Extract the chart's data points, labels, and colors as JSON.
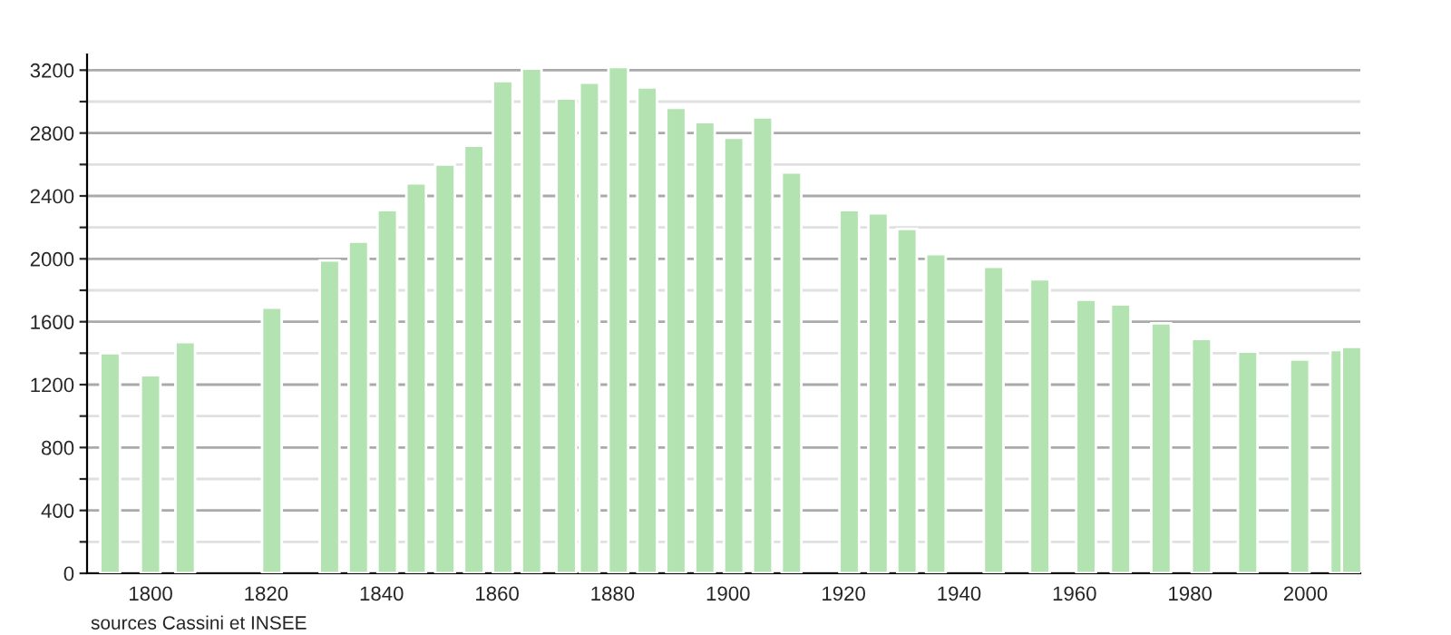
{
  "chart_data": {
    "type": "bar",
    "x": [
      1793,
      1800,
      1806,
      1821,
      1831,
      1836,
      1841,
      1846,
      1851,
      1856,
      1861,
      1866,
      1872,
      1876,
      1881,
      1886,
      1891,
      1896,
      1901,
      1906,
      1911,
      1921,
      1926,
      1931,
      1936,
      1946,
      1954,
      1962,
      1968,
      1975,
      1982,
      1990,
      1999,
      2006,
      2008
    ],
    "series": [
      {
        "color": "#b3e3b1",
        "values": [
          1400,
          1260,
          1470,
          1690,
          1990,
          2110,
          2310,
          2480,
          2600,
          2720,
          3130,
          3210,
          3020,
          3120,
          3220,
          3090,
          2960,
          2870,
          2770,
          2900,
          2550,
          2310,
          2290,
          2190,
          2030,
          1950,
          1870,
          1740,
          1710,
          1590,
          1490,
          1410,
          1360,
          1420,
          1440
        ]
      }
    ],
    "xlim": [
      1789,
      2009.5
    ],
    "xticks": [
      1800,
      1820,
      1840,
      1860,
      1880,
      1900,
      1920,
      1940,
      1960,
      1980,
      2000
    ],
    "ylim": [
      0,
      3300
    ],
    "yticks": [
      0,
      {
        "value": 200,
        "label": null
      },
      400,
      {
        "value": 600,
        "label": null
      },
      800,
      {
        "value": 1000,
        "label": null
      },
      1200,
      {
        "value": 1400,
        "label": null
      },
      1600,
      {
        "value": 1800,
        "label": null
      },
      2000,
      {
        "value": 2200,
        "label": null
      },
      2400,
      {
        "value": 2600,
        "label": null
      },
      2800,
      {
        "value": 3000,
        "label": null
      },
      3200
    ],
    "grid": "y",
    "annotations": [
      "sources Cassini et INSEE"
    ]
  }
}
